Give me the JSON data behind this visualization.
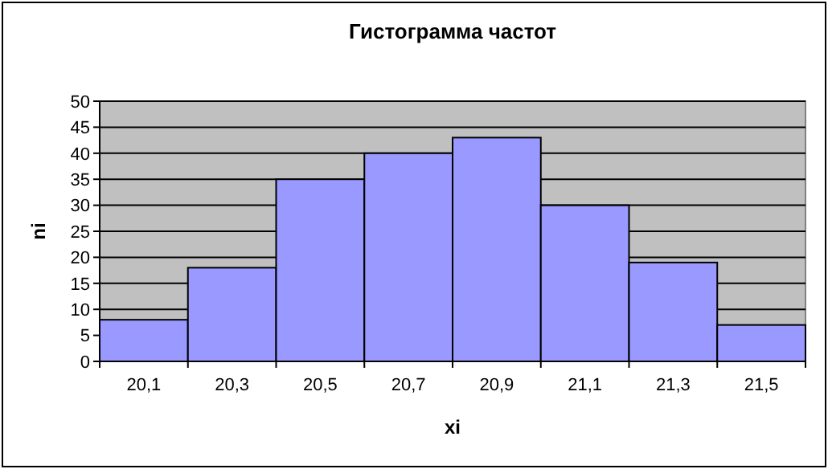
{
  "chart_data": {
    "type": "bar",
    "title": "Гистограмма частот",
    "xlabel": "xi",
    "ylabel": "ni",
    "categories": [
      "20,1",
      "20,3",
      "20,5",
      "20,7",
      "20,9",
      "21,1",
      "21,3",
      "21,5"
    ],
    "values": [
      8,
      18,
      35,
      40,
      43,
      30,
      19,
      7
    ],
    "color": "#9999ff",
    "ylim": [
      0,
      50
    ],
    "yticks": [
      0,
      5,
      10,
      15,
      20,
      25,
      30,
      35,
      40,
      45,
      50
    ],
    "grid": "y"
  }
}
